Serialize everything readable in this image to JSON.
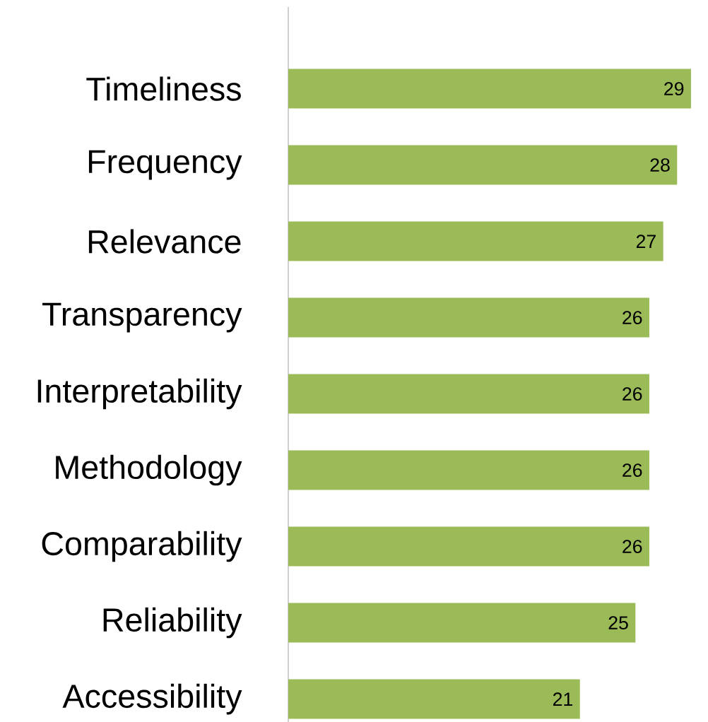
{
  "chart_data": {
    "type": "bar",
    "orientation": "horizontal",
    "categories": [
      "Timeliness",
      "Frequency",
      "Relevance",
      "Transparency",
      "Interpretability",
      "Methodology",
      "Comparability",
      "Reliability",
      "Accessibility"
    ],
    "values": [
      29,
      28,
      27,
      26,
      26,
      26,
      26,
      25,
      21
    ],
    "color": "#9bbb59",
    "data_labels": true
  }
}
